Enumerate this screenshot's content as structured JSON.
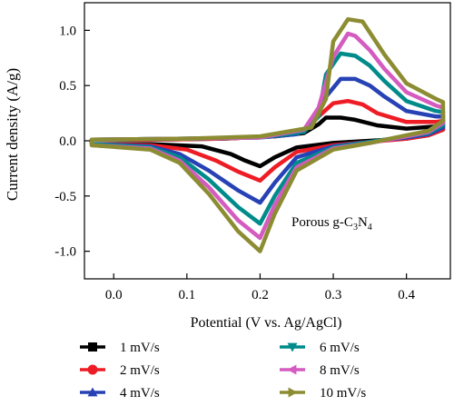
{
  "chart_data": {
    "type": "line",
    "title": "",
    "xlabel": "Potential (V vs. Ag/AgCl)",
    "ylabel": "Current density (A/g)",
    "xlim": [
      -0.04,
      0.46
    ],
    "ylim": [
      -1.25,
      1.25
    ],
    "xticks": [
      0.0,
      0.1,
      0.2,
      0.3,
      0.4
    ],
    "xtick_labels": [
      "0.0",
      "0.1",
      "0.2",
      "0.3",
      "0.4"
    ],
    "yticks": [
      -1.0,
      -0.5,
      0.0,
      0.5,
      1.0
    ],
    "ytick_labels": [
      "-1.0",
      "-0.5",
      "0.0",
      "0.5",
      "1.0"
    ],
    "grid": false,
    "legend_position": "below plot, two columns",
    "annotation": {
      "prefix": "Porous g-C",
      "sub1": "3",
      "mid": "N",
      "sub2": "4"
    },
    "series": [
      {
        "name": "1 mV/s",
        "color": "#000000",
        "marker": "square",
        "x": [
          -0.03,
          0.05,
          0.12,
          0.16,
          0.18,
          0.2,
          0.22,
          0.25,
          0.3,
          0.35,
          0.4,
          0.43,
          0.45,
          0.45,
          0.44,
          0.4,
          0.36,
          0.33,
          0.31,
          0.29,
          0.28,
          0.26,
          0.22,
          0.15,
          0.05,
          -0.03
        ],
        "y": [
          -0.03,
          -0.03,
          -0.05,
          -0.12,
          -0.18,
          -0.23,
          -0.15,
          -0.06,
          -0.02,
          0.0,
          0.02,
          0.05,
          0.1,
          0.14,
          0.13,
          0.11,
          0.14,
          0.19,
          0.21,
          0.21,
          0.15,
          0.07,
          0.04,
          0.02,
          0.01,
          0.01
        ]
      },
      {
        "name": "2 mV/s",
        "color": "#ee1c25",
        "marker": "circle",
        "x": [
          -0.03,
          0.05,
          0.1,
          0.14,
          0.17,
          0.2,
          0.22,
          0.25,
          0.3,
          0.35,
          0.4,
          0.43,
          0.45,
          0.45,
          0.44,
          0.4,
          0.36,
          0.34,
          0.32,
          0.3,
          0.28,
          0.26,
          0.22,
          0.15,
          0.05,
          -0.03
        ],
        "y": [
          -0.03,
          -0.04,
          -0.08,
          -0.18,
          -0.28,
          -0.36,
          -0.24,
          -0.1,
          -0.04,
          -0.01,
          0.02,
          0.05,
          0.1,
          0.18,
          0.17,
          0.17,
          0.25,
          0.33,
          0.36,
          0.34,
          0.22,
          0.09,
          0.04,
          0.02,
          0.01,
          0.01
        ]
      },
      {
        "name": "4 mV/s",
        "color": "#2742b5",
        "marker": "triangle-up",
        "x": [
          -0.03,
          0.05,
          0.09,
          0.13,
          0.17,
          0.2,
          0.22,
          0.25,
          0.3,
          0.35,
          0.4,
          0.43,
          0.45,
          0.45,
          0.44,
          0.4,
          0.37,
          0.35,
          0.33,
          0.31,
          0.29,
          0.27,
          0.25,
          0.2,
          0.1,
          -0.03
        ],
        "y": [
          -0.03,
          -0.05,
          -0.12,
          -0.27,
          -0.45,
          -0.56,
          -0.38,
          -0.15,
          -0.05,
          -0.01,
          0.03,
          0.06,
          0.12,
          0.22,
          0.22,
          0.27,
          0.4,
          0.5,
          0.56,
          0.56,
          0.4,
          0.14,
          0.06,
          0.03,
          0.02,
          0.01
        ]
      },
      {
        "name": "6 mV/s",
        "color": "#008b8b",
        "marker": "triangle-down",
        "x": [
          -0.03,
          0.05,
          0.09,
          0.13,
          0.17,
          0.2,
          0.22,
          0.25,
          0.3,
          0.35,
          0.4,
          0.43,
          0.45,
          0.45,
          0.44,
          0.4,
          0.37,
          0.35,
          0.33,
          0.31,
          0.29,
          0.28,
          0.26,
          0.2,
          0.1,
          -0.03
        ],
        "y": [
          -0.03,
          -0.06,
          -0.15,
          -0.35,
          -0.6,
          -0.75,
          -0.5,
          -0.2,
          -0.06,
          -0.01,
          0.04,
          0.07,
          0.14,
          0.26,
          0.27,
          0.36,
          0.54,
          0.68,
          0.77,
          0.79,
          0.6,
          0.22,
          0.08,
          0.03,
          0.02,
          0.01
        ]
      },
      {
        "name": "8 mV/s",
        "color": "#d45bbf",
        "marker": "triangle-left",
        "x": [
          -0.03,
          0.05,
          0.09,
          0.13,
          0.17,
          0.2,
          0.22,
          0.25,
          0.3,
          0.35,
          0.4,
          0.43,
          0.45,
          0.45,
          0.44,
          0.4,
          0.37,
          0.35,
          0.33,
          0.32,
          0.3,
          0.28,
          0.26,
          0.2,
          0.1,
          -0.03
        ],
        "y": [
          -0.04,
          -0.07,
          -0.18,
          -0.42,
          -0.72,
          -0.88,
          -0.58,
          -0.24,
          -0.07,
          -0.02,
          0.04,
          0.08,
          0.16,
          0.3,
          0.32,
          0.44,
          0.65,
          0.82,
          0.95,
          0.97,
          0.76,
          0.3,
          0.1,
          0.03,
          0.02,
          0.01
        ]
      },
      {
        "name": "10 mV/s",
        "color": "#8c8c33",
        "marker": "triangle-right",
        "x": [
          -0.03,
          0.05,
          0.09,
          0.13,
          0.17,
          0.2,
          0.22,
          0.25,
          0.3,
          0.35,
          0.4,
          0.43,
          0.45,
          0.45,
          0.44,
          0.4,
          0.37,
          0.35,
          0.34,
          0.32,
          0.3,
          0.29,
          0.27,
          0.2,
          0.1,
          -0.03
        ],
        "y": [
          -0.04,
          -0.08,
          -0.2,
          -0.48,
          -0.82,
          -1.0,
          -0.66,
          -0.27,
          -0.08,
          -0.02,
          0.05,
          0.09,
          0.18,
          0.35,
          0.38,
          0.52,
          0.78,
          0.98,
          1.08,
          1.1,
          0.9,
          0.38,
          0.12,
          0.04,
          0.02,
          0.01
        ]
      }
    ]
  }
}
